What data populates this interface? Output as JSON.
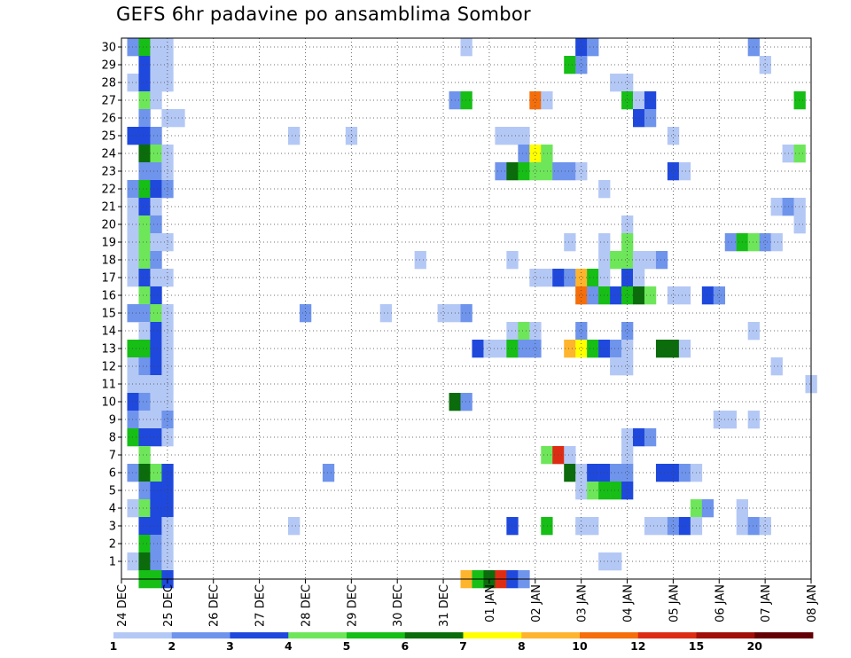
{
  "chart_data": {
    "type": "heatmap",
    "title": "GEFS 6hr padavine po ansamblima Sombor",
    "x_tick_labels": [
      "24 DEC",
      "25 DEC",
      "26 DEC",
      "27 DEC",
      "28 DEC",
      "29 DEC",
      "30 DEC",
      "31 DEC",
      "01 JAN",
      "02 JAN",
      "03 JAN",
      "04 JAN",
      "05 JAN",
      "06 JAN",
      "07 JAN",
      "08 JAN"
    ],
    "y_tick_labels": [
      "1",
      "2",
      "3",
      "4",
      "5",
      "6",
      "7",
      "8",
      "9",
      "10",
      "11",
      "12",
      "13",
      "14",
      "15",
      "16",
      "17",
      "18",
      "19",
      "20",
      "21",
      "22",
      "23",
      "24",
      "25",
      "26",
      "27",
      "28",
      "29",
      "30"
    ],
    "xlim": [
      0,
      60
    ],
    "ylim": [
      0,
      30
    ],
    "grid": true,
    "colorbar": {
      "labels": [
        "1",
        "2",
        "3",
        "4",
        "5",
        "6",
        "7",
        "8",
        "10",
        "12",
        "15",
        "20"
      ],
      "colors": [
        "#b4c8f5",
        "#6f94ec",
        "#1f48dd",
        "#6ee65a",
        "#16be16",
        "#0a6c0a",
        "#ffff00",
        "#ffb42d",
        "#f56e0a",
        "#dc2d14",
        "#a00f0a",
        "#640005"
      ]
    },
    "cells": [
      {
        "m": 30,
        "d": [
          [
            1,
            1
          ],
          [
            2,
            4
          ],
          [
            3,
            0
          ],
          [
            4,
            0
          ],
          [
            30,
            0
          ],
          [
            40,
            2
          ],
          [
            41,
            1
          ],
          [
            55,
            1
          ]
        ]
      },
      {
        "m": 29,
        "d": [
          [
            2,
            2
          ],
          [
            3,
            0
          ],
          [
            4,
            0
          ],
          [
            39,
            4
          ],
          [
            40,
            1
          ],
          [
            56,
            0
          ]
        ]
      },
      {
        "m": 28,
        "d": [
          [
            1,
            0
          ],
          [
            2,
            2
          ],
          [
            3,
            0
          ],
          [
            4,
            0
          ],
          [
            43,
            0
          ],
          [
            44,
            0
          ]
        ]
      },
      {
        "m": 27,
        "d": [
          [
            2,
            3
          ],
          [
            3,
            0
          ],
          [
            29,
            1
          ],
          [
            30,
            4
          ],
          [
            36,
            8
          ],
          [
            37,
            0
          ],
          [
            44,
            4
          ],
          [
            45,
            0
          ],
          [
            46,
            2
          ],
          [
            59,
            4
          ]
        ]
      },
      {
        "m": 26,
        "d": [
          [
            2,
            1
          ],
          [
            4,
            0
          ],
          [
            5,
            0
          ],
          [
            45,
            2
          ],
          [
            46,
            1
          ]
        ]
      },
      {
        "m": 25,
        "d": [
          [
            1,
            2
          ],
          [
            2,
            2
          ],
          [
            3,
            1
          ],
          [
            15,
            0
          ],
          [
            20,
            0
          ],
          [
            33,
            0
          ],
          [
            34,
            0
          ],
          [
            35,
            0
          ],
          [
            48,
            0
          ]
        ]
      },
      {
        "m": 24,
        "d": [
          [
            2,
            5
          ],
          [
            3,
            3
          ],
          [
            4,
            0
          ],
          [
            35,
            1
          ],
          [
            36,
            6
          ],
          [
            37,
            3
          ],
          [
            58,
            0
          ],
          [
            59,
            3
          ]
        ]
      },
      {
        "m": 23,
        "d": [
          [
            2,
            1
          ],
          [
            3,
            1
          ],
          [
            4,
            0
          ],
          [
            33,
            1
          ],
          [
            34,
            5
          ],
          [
            35,
            4
          ],
          [
            36,
            3
          ],
          [
            37,
            3
          ],
          [
            38,
            1
          ],
          [
            39,
            1
          ],
          [
            40,
            0
          ],
          [
            48,
            2
          ],
          [
            49,
            0
          ]
        ]
      },
      {
        "m": 22,
        "d": [
          [
            1,
            1
          ],
          [
            2,
            4
          ],
          [
            3,
            2
          ],
          [
            4,
            1
          ],
          [
            42,
            0
          ]
        ]
      },
      {
        "m": 21,
        "d": [
          [
            1,
            0
          ],
          [
            2,
            2
          ],
          [
            3,
            0
          ],
          [
            57,
            0
          ],
          [
            58,
            1
          ],
          [
            59,
            0
          ]
        ]
      },
      {
        "m": 20,
        "d": [
          [
            1,
            0
          ],
          [
            2,
            3
          ],
          [
            3,
            1
          ],
          [
            44,
            0
          ],
          [
            59,
            0
          ]
        ]
      },
      {
        "m": 19,
        "d": [
          [
            1,
            0
          ],
          [
            2,
            3
          ],
          [
            3,
            0
          ],
          [
            4,
            0
          ],
          [
            39,
            0
          ],
          [
            42,
            0
          ],
          [
            44,
            3
          ],
          [
            53,
            1
          ],
          [
            54,
            4
          ],
          [
            55,
            3
          ],
          [
            56,
            1
          ],
          [
            57,
            0
          ]
        ]
      },
      {
        "m": 18,
        "d": [
          [
            1,
            0
          ],
          [
            2,
            3
          ],
          [
            3,
            1
          ],
          [
            26,
            0
          ],
          [
            34,
            0
          ],
          [
            42,
            0
          ],
          [
            43,
            3
          ],
          [
            44,
            3
          ],
          [
            45,
            0
          ],
          [
            46,
            0
          ],
          [
            47,
            1
          ]
        ]
      },
      {
        "m": 17,
        "d": [
          [
            1,
            0
          ],
          [
            2,
            2
          ],
          [
            3,
            0
          ],
          [
            4,
            0
          ],
          [
            36,
            0
          ],
          [
            37,
            0
          ],
          [
            38,
            2
          ],
          [
            39,
            1
          ],
          [
            40,
            7
          ],
          [
            41,
            4
          ],
          [
            42,
            0
          ],
          [
            44,
            2
          ],
          [
            45,
            0
          ]
        ]
      },
      {
        "m": 16,
        "d": [
          [
            2,
            3
          ],
          [
            3,
            2
          ],
          [
            40,
            8
          ],
          [
            41,
            1
          ],
          [
            42,
            4
          ],
          [
            43,
            2
          ],
          [
            44,
            4
          ],
          [
            45,
            5
          ],
          [
            46,
            3
          ],
          [
            48,
            0
          ],
          [
            49,
            0
          ],
          [
            51,
            2
          ],
          [
            52,
            1
          ]
        ]
      },
      {
        "m": 15,
        "d": [
          [
            1,
            1
          ],
          [
            2,
            1
          ],
          [
            3,
            3
          ],
          [
            4,
            0
          ],
          [
            16,
            1
          ],
          [
            23,
            0
          ],
          [
            28,
            0
          ],
          [
            29,
            0
          ],
          [
            30,
            1
          ]
        ]
      },
      {
        "m": 14,
        "d": [
          [
            2,
            0
          ],
          [
            3,
            2
          ],
          [
            4,
            0
          ],
          [
            34,
            0
          ],
          [
            35,
            3
          ],
          [
            36,
            0
          ],
          [
            40,
            1
          ],
          [
            44,
            1
          ],
          [
            55,
            0
          ]
        ]
      },
      {
        "m": 13,
        "d": [
          [
            1,
            4
          ],
          [
            2,
            4
          ],
          [
            3,
            2
          ],
          [
            4,
            0
          ],
          [
            31,
            2
          ],
          [
            32,
            0
          ],
          [
            33,
            0
          ],
          [
            34,
            4
          ],
          [
            35,
            1
          ],
          [
            36,
            1
          ],
          [
            39,
            7
          ],
          [
            40,
            6
          ],
          [
            41,
            4
          ],
          [
            42,
            2
          ],
          [
            43,
            1
          ],
          [
            44,
            0
          ],
          [
            47,
            5
          ],
          [
            48,
            5
          ],
          [
            49,
            0
          ]
        ]
      },
      {
        "m": 12,
        "d": [
          [
            1,
            0
          ],
          [
            2,
            1
          ],
          [
            3,
            2
          ],
          [
            4,
            0
          ],
          [
            43,
            0
          ],
          [
            44,
            0
          ],
          [
            57,
            0
          ]
        ]
      },
      {
        "m": 11,
        "d": [
          [
            1,
            0
          ],
          [
            2,
            0
          ],
          [
            3,
            0
          ],
          [
            4,
            0
          ],
          [
            60,
            0
          ]
        ]
      },
      {
        "m": 10,
        "d": [
          [
            1,
            2
          ],
          [
            2,
            1
          ],
          [
            3,
            0
          ],
          [
            4,
            0
          ],
          [
            29,
            5
          ],
          [
            30,
            1
          ]
        ]
      },
      {
        "m": 9,
        "d": [
          [
            1,
            1
          ],
          [
            2,
            0
          ],
          [
            3,
            0
          ],
          [
            4,
            1
          ],
          [
            52,
            0
          ],
          [
            53,
            0
          ],
          [
            55,
            0
          ]
        ]
      },
      {
        "m": 8,
        "d": [
          [
            1,
            4
          ],
          [
            2,
            2
          ],
          [
            3,
            2
          ],
          [
            4,
            0
          ],
          [
            44,
            0
          ],
          [
            45,
            2
          ],
          [
            46,
            1
          ]
        ]
      },
      {
        "m": 7,
        "d": [
          [
            2,
            3
          ],
          [
            37,
            3
          ],
          [
            38,
            9
          ],
          [
            39,
            0
          ],
          [
            44,
            0
          ]
        ]
      },
      {
        "m": 6,
        "d": [
          [
            1,
            1
          ],
          [
            2,
            5
          ],
          [
            3,
            3
          ],
          [
            4,
            2
          ],
          [
            18,
            1
          ],
          [
            39,
            5
          ],
          [
            40,
            0
          ],
          [
            41,
            2
          ],
          [
            42,
            2
          ],
          [
            43,
            1
          ],
          [
            44,
            1
          ],
          [
            47,
            2
          ],
          [
            48,
            2
          ],
          [
            49,
            1
          ],
          [
            50,
            0
          ]
        ]
      },
      {
        "m": 5,
        "d": [
          [
            2,
            1
          ],
          [
            3,
            2
          ],
          [
            4,
            2
          ],
          [
            40,
            0
          ],
          [
            41,
            3
          ],
          [
            42,
            4
          ],
          [
            43,
            4
          ],
          [
            44,
            2
          ]
        ]
      },
      {
        "m": 4,
        "d": [
          [
            1,
            0
          ],
          [
            2,
            3
          ],
          [
            3,
            2
          ],
          [
            4,
            2
          ],
          [
            50,
            3
          ],
          [
            51,
            1
          ],
          [
            54,
            0
          ]
        ]
      },
      {
        "m": 3,
        "d": [
          [
            2,
            2
          ],
          [
            3,
            2
          ],
          [
            4,
            0
          ],
          [
            15,
            0
          ],
          [
            34,
            2
          ],
          [
            37,
            4
          ],
          [
            40,
            0
          ],
          [
            41,
            0
          ],
          [
            46,
            0
          ],
          [
            47,
            0
          ],
          [
            48,
            1
          ],
          [
            49,
            2
          ],
          [
            50,
            0
          ],
          [
            54,
            0
          ],
          [
            55,
            1
          ],
          [
            56,
            0
          ]
        ]
      },
      {
        "m": 2,
        "d": [
          [
            2,
            4
          ],
          [
            3,
            1
          ],
          [
            4,
            0
          ]
        ]
      },
      {
        "m": 1,
        "d": [
          [
            1,
            0
          ],
          [
            2,
            5
          ],
          [
            3,
            1
          ],
          [
            4,
            0
          ],
          [
            42,
            0
          ],
          [
            43,
            0
          ]
        ]
      },
      {
        "m": 0,
        "d": [
          [
            2,
            4
          ],
          [
            3,
            4
          ],
          [
            4,
            2
          ],
          [
            30,
            7
          ],
          [
            31,
            4
          ],
          [
            32,
            5
          ],
          [
            33,
            9
          ],
          [
            34,
            2
          ],
          [
            35,
            1
          ]
        ]
      }
    ]
  }
}
